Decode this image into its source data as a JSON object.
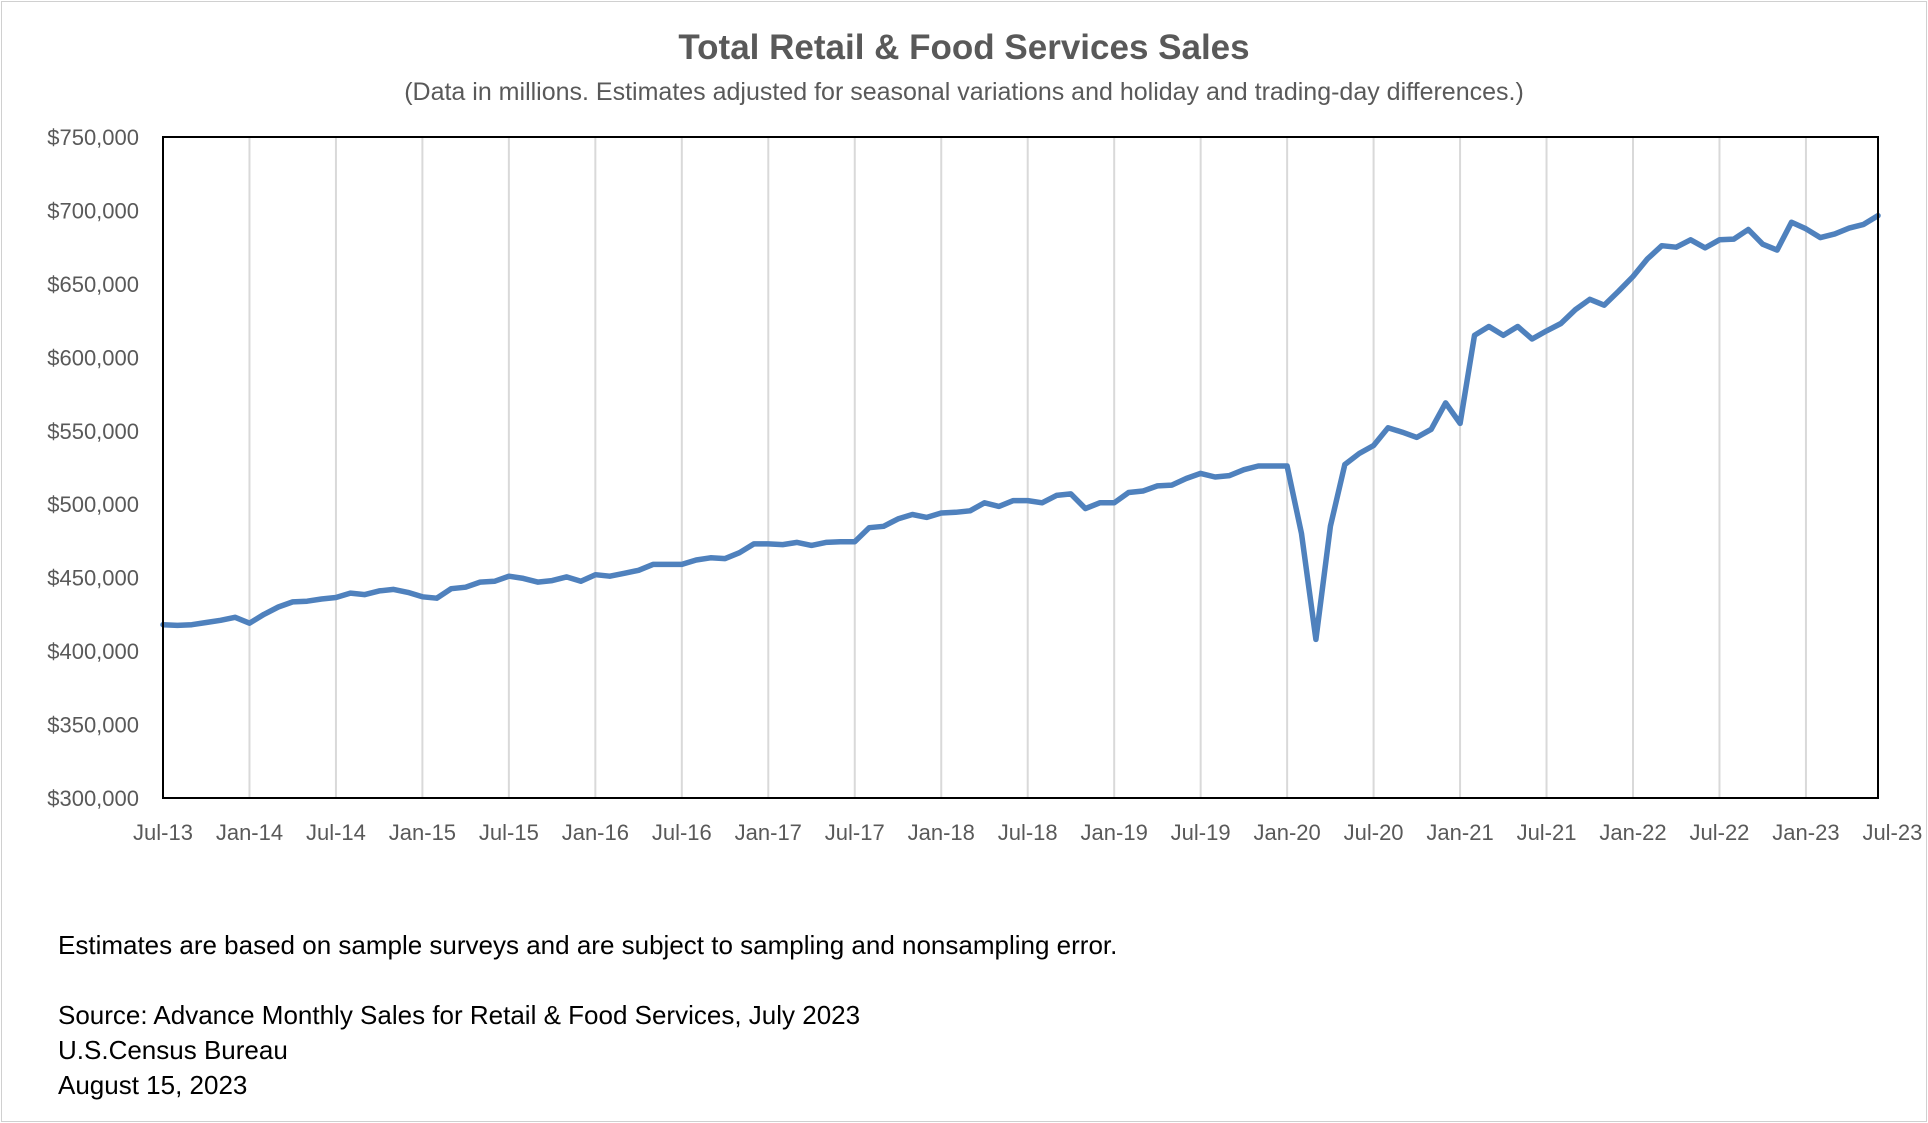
{
  "chart_data": {
    "type": "line",
    "title": "Total Retail & Food Services Sales",
    "subtitle": "(Data in millions. Estimates adjusted for seasonal variations and holiday and trading-day differences.)",
    "x_tick_labels": [
      "Jul-13",
      "Jan-14",
      "Jul-14",
      "Jan-15",
      "Jul-15",
      "Jan-16",
      "Jul-16",
      "Jan-17",
      "Jul-17",
      "Jan-18",
      "Jul-18",
      "Jan-19",
      "Jul-19",
      "Jan-20",
      "Jul-20",
      "Jan-21",
      "Jul-21",
      "Jan-22",
      "Jul-22",
      "Jan-23",
      "Jul-23"
    ],
    "y_tick_labels": [
      "$300,000",
      "$350,000",
      "$400,000",
      "$450,000",
      "$500,000",
      "$550,000",
      "$600,000",
      "$650,000",
      "$700,000",
      "$750,000"
    ],
    "ylim": [
      300000,
      750000
    ],
    "y_tick_step": 50000,
    "grid": "vertical",
    "series_color": "#4f81bd",
    "series": [
      {
        "values": [
          418000,
          417500,
          418000,
          419500,
          421000,
          423000,
          419000,
          425000,
          430000,
          433500,
          434000,
          435500,
          436500,
          439500,
          438500,
          441000,
          442000,
          440000,
          437000,
          436000,
          442500,
          443500,
          447000,
          447500,
          451000,
          449500,
          447000,
          448000,
          450500,
          447500,
          452000,
          451000,
          453000,
          455000,
          459000,
          459000,
          459000,
          462000,
          463500,
          463000,
          467000,
          473000,
          473000,
          472500,
          474000,
          472000,
          474000,
          474500,
          474500,
          484000,
          485000,
          490000,
          493000,
          491000,
          494000,
          494500,
          495500,
          501000,
          498500,
          502500,
          502500,
          501000,
          506000,
          507000,
          497000,
          501000,
          501000,
          508000,
          509000,
          512500,
          513000,
          517500,
          521000,
          518500,
          519500,
          523500,
          526000,
          526000,
          526000,
          480000,
          408000,
          485000,
          527000,
          534500,
          540000,
          552000,
          549000,
          545500,
          551000,
          569000,
          555000,
          615000,
          621000,
          615000,
          621000,
          612500,
          618000,
          623000,
          632500,
          639500,
          635500,
          645000,
          655000,
          667000,
          676000,
          675000,
          680000,
          674500,
          680000,
          680500,
          687000,
          677000,
          673000,
          692000,
          687500,
          681500,
          684000,
          688000,
          690500,
          696500
        ]
      }
    ],
    "footnote": "Estimates are based on sample surveys and are subject to sampling and nonsampling error.",
    "source_lines": [
      "Source: Advance Monthly Sales for Retail & Food Services, July 2023",
      "U.S.Census Bureau",
      "August 15, 2023"
    ]
  }
}
